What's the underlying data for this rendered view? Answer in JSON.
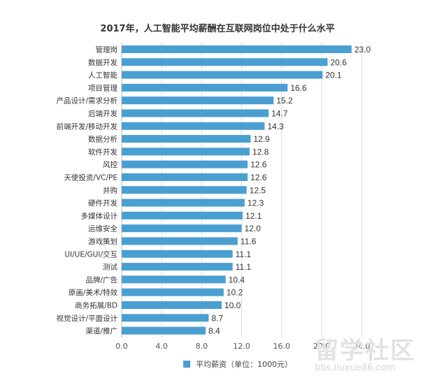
{
  "chart_data": {
    "type": "bar",
    "orientation": "horizontal",
    "title": "2017年，人工智能平均薪酬在互联网岗位中处于什么水平",
    "categories": [
      "管理岗",
      "数据开发",
      "人工智能",
      "项目管理",
      "产品设计/需求分析",
      "后端开发",
      "前端开发/移动开发",
      "数据分析",
      "软件开发",
      "风控",
      "天使投资/VC/PE",
      "并购",
      "硬件开发",
      "多媒体设计",
      "运维安全",
      "游戏策划",
      "UI/UE/GUI/交互",
      "测试",
      "品牌/广告",
      "原画/美术/特效",
      "商务拓展/BD",
      "视觉设计/平面设计",
      "渠道/推广"
    ],
    "values": [
      23.0,
      20.6,
      20.1,
      16.6,
      15.2,
      14.7,
      14.3,
      12.9,
      12.8,
      12.6,
      12.6,
      12.5,
      12.3,
      12.1,
      12.0,
      11.6,
      11.1,
      11.1,
      10.4,
      10.2,
      10.0,
      8.7,
      8.4
    ],
    "value_labels": [
      "23.0",
      "20.6",
      "20.1",
      "16.6",
      "15.2",
      "14.7",
      "14.3",
      "12.9",
      "12.8",
      "12.6",
      "12.6",
      "12.5",
      "12.3",
      "12.1",
      "12.0",
      "11.6",
      "11.1",
      "11.1",
      "10.4",
      "10.2",
      "10.0",
      "8.7",
      "8.4"
    ],
    "xticks": [
      "0.0",
      "4.0",
      "8.0",
      "12.0",
      "16.0",
      "20.0",
      "24.0"
    ],
    "xlim": [
      0,
      24
    ],
    "grid": true,
    "legend": {
      "label": "平均薪资（单位：1000元）",
      "placement": "bottom-center"
    },
    "bar_color": "#4a9fd1"
  },
  "watermark": {
    "text": "留学社区",
    "url": "bbs.liuxue86.com"
  }
}
